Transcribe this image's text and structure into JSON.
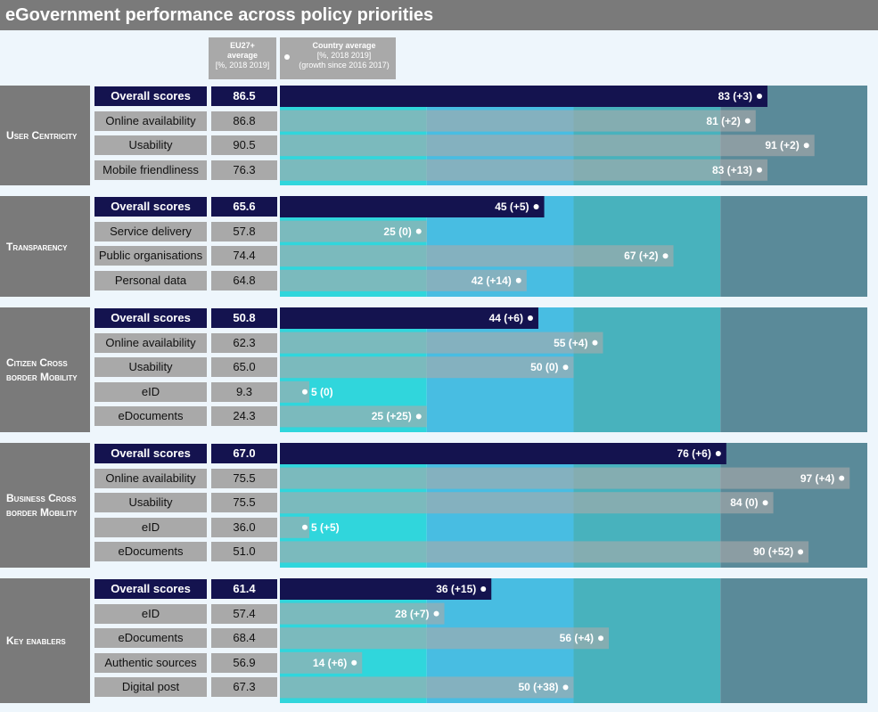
{
  "title": "eGovernment performance across policy priorities",
  "legend": {
    "eu_lines": [
      "EU27+",
      "average",
      "[%, 2018 2019]"
    ],
    "country_lines": [
      "Country average",
      "[%, 2018 2019]",
      "(growth since 2016 2017)"
    ]
  },
  "colors": {
    "overall_bar": "#14134f",
    "sub_bar": "#a9a9a9",
    "band_1": "#30d6dc",
    "band_2": "#48bde2",
    "band_3": "#48b2bd",
    "band_4": "#5a8a99",
    "title_bg": "#7a7a7a"
  },
  "chart_data": {
    "type": "bar",
    "orientation": "horizontal",
    "xlim": [
      0,
      100
    ],
    "band_boundaries": [
      0,
      25,
      50,
      75,
      100
    ],
    "groups": [
      {
        "name": "User Centricity",
        "rows": [
          {
            "label": "Overall scores",
            "overall": true,
            "eu": "86.5",
            "value": 83,
            "growth": "+3",
            "text": "83 (+3)"
          },
          {
            "label": "Online availability",
            "overall": false,
            "eu": "86.8",
            "value": 81,
            "growth": "+2",
            "text": "81 (+2)"
          },
          {
            "label": "Usability",
            "overall": false,
            "eu": "90.5",
            "value": 91,
            "growth": "+2",
            "text": "91 (+2)"
          },
          {
            "label": "Mobile friendliness",
            "overall": false,
            "eu": "76.3",
            "value": 83,
            "growth": "+13",
            "text": "83 (+13)"
          }
        ]
      },
      {
        "name": "Transparency",
        "rows": [
          {
            "label": "Overall scores",
            "overall": true,
            "eu": "65.6",
            "value": 45,
            "growth": "+5",
            "text": "45 (+5)"
          },
          {
            "label": "Service delivery",
            "overall": false,
            "eu": "57.8",
            "value": 25,
            "growth": "0",
            "text": "25 (0)"
          },
          {
            "label": "Public organisations",
            "overall": false,
            "eu": "74.4",
            "value": 67,
            "growth": "+2",
            "text": "67 (+2)"
          },
          {
            "label": "Personal data",
            "overall": false,
            "eu": "64.8",
            "value": 42,
            "growth": "+14",
            "text": "42 (+14)"
          }
        ]
      },
      {
        "name": "Citizen Cross border Mobility",
        "rows": [
          {
            "label": "Overall scores",
            "overall": true,
            "eu": "50.8",
            "value": 44,
            "growth": "+6",
            "text": "44 (+6)"
          },
          {
            "label": "Online availability",
            "overall": false,
            "eu": "62.3",
            "value": 55,
            "growth": "+4",
            "text": "55 (+4)"
          },
          {
            "label": "Usability",
            "overall": false,
            "eu": "65.0",
            "value": 50,
            "growth": "0",
            "text": "50 (0)"
          },
          {
            "label": "eID",
            "overall": false,
            "eu": "9.3",
            "value": 5,
            "growth": "0",
            "text": "5 (0)"
          },
          {
            "label": "eDocuments",
            "overall": false,
            "eu": "24.3",
            "value": 25,
            "growth": "+25",
            "text": "25 (+25)"
          }
        ]
      },
      {
        "name": "Business Cross border Mobility",
        "rows": [
          {
            "label": "Overall scores",
            "overall": true,
            "eu": "67.0",
            "value": 76,
            "growth": "+6",
            "text": "76 (+6)"
          },
          {
            "label": "Online availability",
            "overall": false,
            "eu": "75.5",
            "value": 97,
            "growth": "+4",
            "text": "97 (+4)"
          },
          {
            "label": "Usability",
            "overall": false,
            "eu": "75.5",
            "value": 84,
            "growth": "0",
            "text": "84 (0)"
          },
          {
            "label": "eID",
            "overall": false,
            "eu": "36.0",
            "value": 5,
            "growth": "+5",
            "text": "5 (+5)"
          },
          {
            "label": "eDocuments",
            "overall": false,
            "eu": "51.0",
            "value": 90,
            "growth": "+52",
            "text": "90 (+52)"
          }
        ]
      },
      {
        "name": "Key enablers",
        "rows": [
          {
            "label": "Overall scores",
            "overall": true,
            "eu": "61.4",
            "value": 36,
            "growth": "+15",
            "text": "36 (+15)"
          },
          {
            "label": "eID",
            "overall": false,
            "eu": "57.4",
            "value": 28,
            "growth": "+7",
            "text": "28 (+7)"
          },
          {
            "label": "eDocuments",
            "overall": false,
            "eu": "68.4",
            "value": 56,
            "growth": "+4",
            "text": "56 (+4)"
          },
          {
            "label": "Authentic sources",
            "overall": false,
            "eu": "56.9",
            "value": 14,
            "growth": "+6",
            "text": "14 (+6)"
          },
          {
            "label": "Digital post",
            "overall": false,
            "eu": "67.3",
            "value": 50,
            "growth": "+38",
            "text": "50 (+38)"
          }
        ]
      }
    ]
  }
}
